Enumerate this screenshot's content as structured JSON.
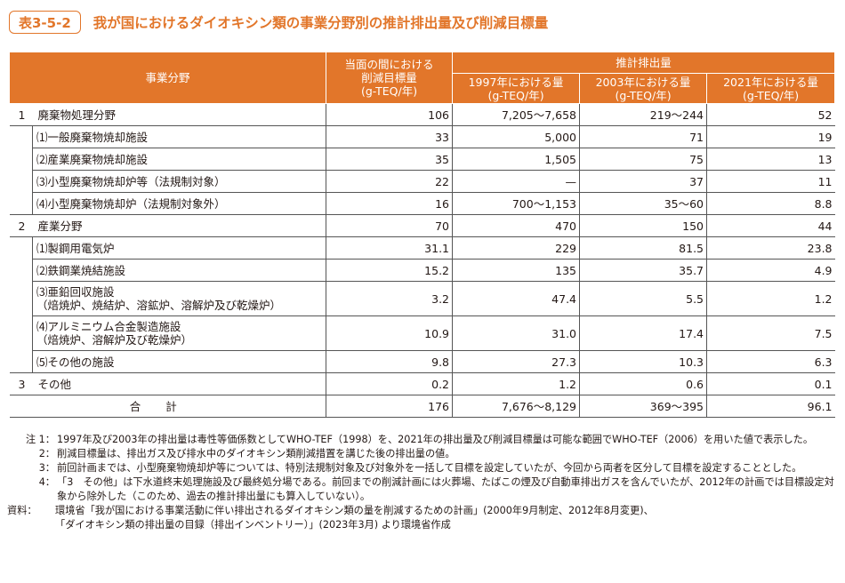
{
  "title": {
    "label": "表3-5-2",
    "text": "我が国におけるダイオキシン類の事業分野別の推計排出量及び削減目標量"
  },
  "header": {
    "field": "事業分野",
    "target": [
      "当面の間における",
      "削減目標量",
      "(g-TEQ/年)"
    ],
    "estimated": "推計排出量",
    "y1997": [
      "1997年における量",
      "(g-TEQ/年)"
    ],
    "y2003": [
      "2003年における量",
      "(g-TEQ/年)"
    ],
    "y2021": [
      "2021年における量",
      "(g-TEQ/年)"
    ]
  },
  "rows": [
    {
      "no": "1",
      "label": "廃棄物処理分野",
      "target": "106",
      "y1997": "7,205～7,658",
      "y2003": "219～244",
      "y2021": "52"
    },
    {
      "label": "⑴一般廃棄物焼却施設",
      "target": "33",
      "y1997": "5,000",
      "y2003": "71",
      "y2021": "19"
    },
    {
      "label": "⑵産業廃棄物焼却施設",
      "target": "35",
      "y1997": "1,505",
      "y2003": "75",
      "y2021": "13"
    },
    {
      "label": "⑶小型廃棄物焼却炉等（法規制対象）",
      "target": "22",
      "y1997": "—",
      "y2003": "37",
      "y2021": "11"
    },
    {
      "label": "⑷小型廃棄物焼却炉（法規制対象外）",
      "target": "16",
      "y1997": "700～1,153",
      "y2003": "35～60",
      "y2021": "8.8"
    },
    {
      "no": "2",
      "label": "産業分野",
      "target": "70",
      "y1997": "470",
      "y2003": "150",
      "y2021": "44"
    },
    {
      "label": "⑴製鋼用電気炉",
      "target": "31.1",
      "y1997": "229",
      "y2003": "81.5",
      "y2021": "23.8"
    },
    {
      "label": "⑵鉄鋼業焼結施設",
      "target": "15.2",
      "y1997": "135",
      "y2003": "35.7",
      "y2021": "4.9"
    },
    {
      "label": "⑶亜鉛回収施設",
      "label2": "（焙焼炉、焼結炉、溶鉱炉、溶解炉及び乾燥炉）",
      "target": "3.2",
      "y1997": "47.4",
      "y2003": "5.5",
      "y2021": "1.2"
    },
    {
      "label": "⑷アルミニウム合金製造施設",
      "label2": "（焙焼炉、溶解炉及び乾燥炉）",
      "target": "10.9",
      "y1997": "31.0",
      "y2003": "17.4",
      "y2021": "7.5"
    },
    {
      "label": "⑸その他の施設",
      "target": "9.8",
      "y1997": "27.3",
      "y2003": "10.3",
      "y2021": "6.3"
    },
    {
      "no": "3",
      "label": "その他",
      "target": "0.2",
      "y1997": "1.2",
      "y2003": "0.6",
      "y2021": "0.1"
    }
  ],
  "total": {
    "label": "合計",
    "target": "176",
    "y1997": "7,676～8,129",
    "y2003": "369～395",
    "y2021": "96.1"
  },
  "notes": [
    {
      "tag": "注 1：",
      "text": "1997年及び2003年の排出量は毒性等価係数としてWHO-TEF（1998）を、2021年の排出量及び削減目標量は可能な範囲でWHO-TEF（2006）を用いた値で表示した。"
    },
    {
      "tag": "2：",
      "text": "削減目標量は、排出ガス及び排水中のダイオキシン類削減措置を講じた後の排出量の値。"
    },
    {
      "tag": "3：",
      "text": "前回計画までは、小型廃棄物焼却炉等については、特別法規制対象及び対象外を一括して目標を設定していたが、今回から両者を区分して目標を設定することとした。"
    },
    {
      "tag": "4：",
      "text": "「3　その他」は下水道終末処理施設及び最終処分場である。前回までの削減計画には火葬場、たばこの煙及び自動車排出ガスを含んでいたが、2012年の計画では目標設定対象から除外した（このため、過去の推計排出量にも算入していない）。"
    }
  ],
  "source": {
    "tag": "資料：",
    "lines": [
      "環境省「我が国における事業活動に伴い排出されるダイオキシン類の量を削減するための計画」(2000年9月制定、2012年8月変更)、",
      "「ダイオキシン類の排出量の目録（排出インベントリー）」(2023年3月) より環境省作成"
    ]
  },
  "colors": {
    "accent": "#e2762a"
  }
}
